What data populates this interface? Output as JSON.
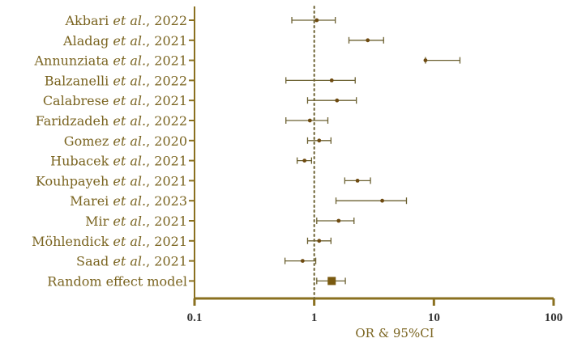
{
  "chart_data": {
    "type": "forest",
    "xlabel": "OR & 95%CI",
    "xscale": "log",
    "xlim": [
      0.1,
      100
    ],
    "xticks": [
      {
        "value": 0.1,
        "label": "0.1"
      },
      {
        "value": 1,
        "label": "1"
      },
      {
        "value": 10,
        "label": "10"
      },
      {
        "value": 100,
        "label": "100"
      }
    ],
    "reference_line": 1,
    "rows": [
      {
        "author": "Akbari",
        "year": "2022",
        "or": 1.05,
        "lower": 0.65,
        "upper": 1.5
      },
      {
        "author": "Aladag",
        "year": "2021",
        "or": 2.8,
        "lower": 1.95,
        "upper": 3.8
      },
      {
        "author": "Annunziata",
        "year": "2021",
        "or": 8.5,
        "lower": 8.5,
        "upper": 16.5
      },
      {
        "author": "Balzanelli",
        "year": "2022",
        "or": 1.4,
        "lower": 0.58,
        "upper": 2.2
      },
      {
        "author": "Calabrese",
        "year": "2021",
        "or": 1.55,
        "lower": 0.88,
        "upper": 2.25
      },
      {
        "author": "Faridzadeh",
        "year": "2022",
        "or": 0.92,
        "lower": 0.58,
        "upper": 1.3
      },
      {
        "author": "Gomez",
        "year": "2020",
        "or": 1.1,
        "lower": 0.88,
        "upper": 1.38
      },
      {
        "author": "Hubacek",
        "year": "2021",
        "or": 0.83,
        "lower": 0.72,
        "upper": 0.95
      },
      {
        "author": "Kouhpayeh",
        "year": "2021",
        "or": 2.3,
        "lower": 1.8,
        "upper": 2.95
      },
      {
        "author": "Marei",
        "year": "2023",
        "or": 3.7,
        "lower": 1.52,
        "upper": 5.9
      },
      {
        "author": "Mir",
        "year": "2021",
        "or": 1.6,
        "lower": 1.05,
        "upper": 2.15
      },
      {
        "author": "Möhlendick",
        "year": "2021",
        "or": 1.1,
        "lower": 0.88,
        "upper": 1.38
      },
      {
        "author": "Saad",
        "year": "2021",
        "or": 0.8,
        "lower": 0.57,
        "upper": 1.03
      },
      {
        "label": "Random effect model",
        "or": 1.4,
        "lower": 1.05,
        "upper": 1.82,
        "pooled": true
      }
    ],
    "etal": "et al.",
    "colors": {
      "text": "#7a6420",
      "axis": "#8a7020",
      "ci": "#6b6030",
      "point": "#6e4a10",
      "pooled": "#7a5a10"
    }
  }
}
